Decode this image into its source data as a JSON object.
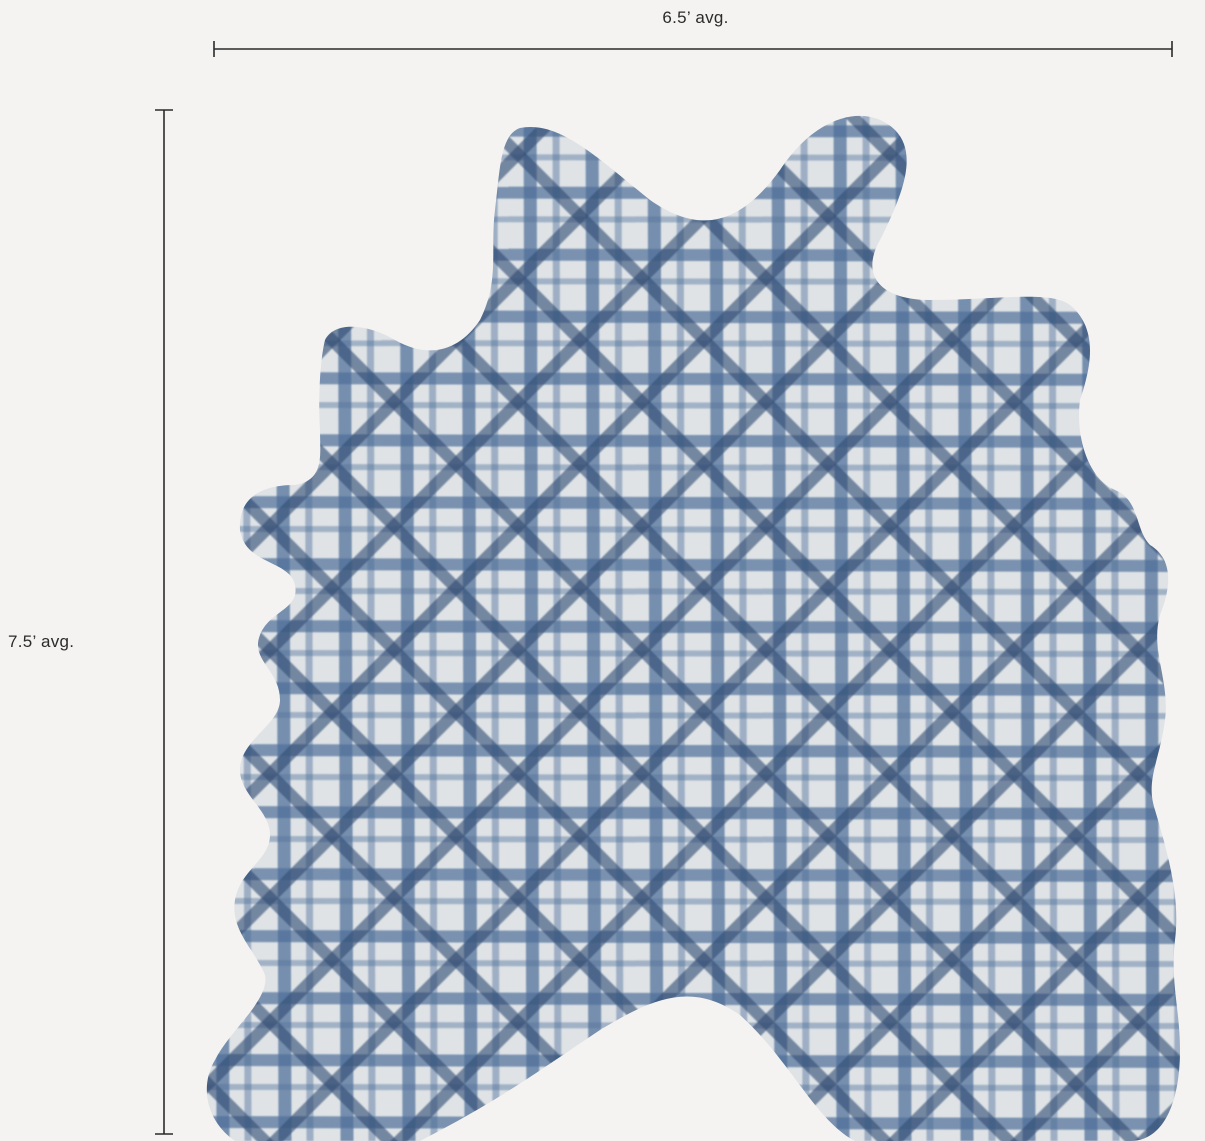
{
  "dimensions": {
    "width_label": "6.5’ avg.",
    "height_label": "7.5’ avg."
  },
  "product": {
    "pattern": "blue watercolor lattice on pale grey hide",
    "colors": {
      "background": "#f4f3f1",
      "hide": "#dfe3e6",
      "stripe": "#4f6f98",
      "stripe_dark": "#324e75",
      "dimension_line": "#2b2b2b"
    }
  }
}
